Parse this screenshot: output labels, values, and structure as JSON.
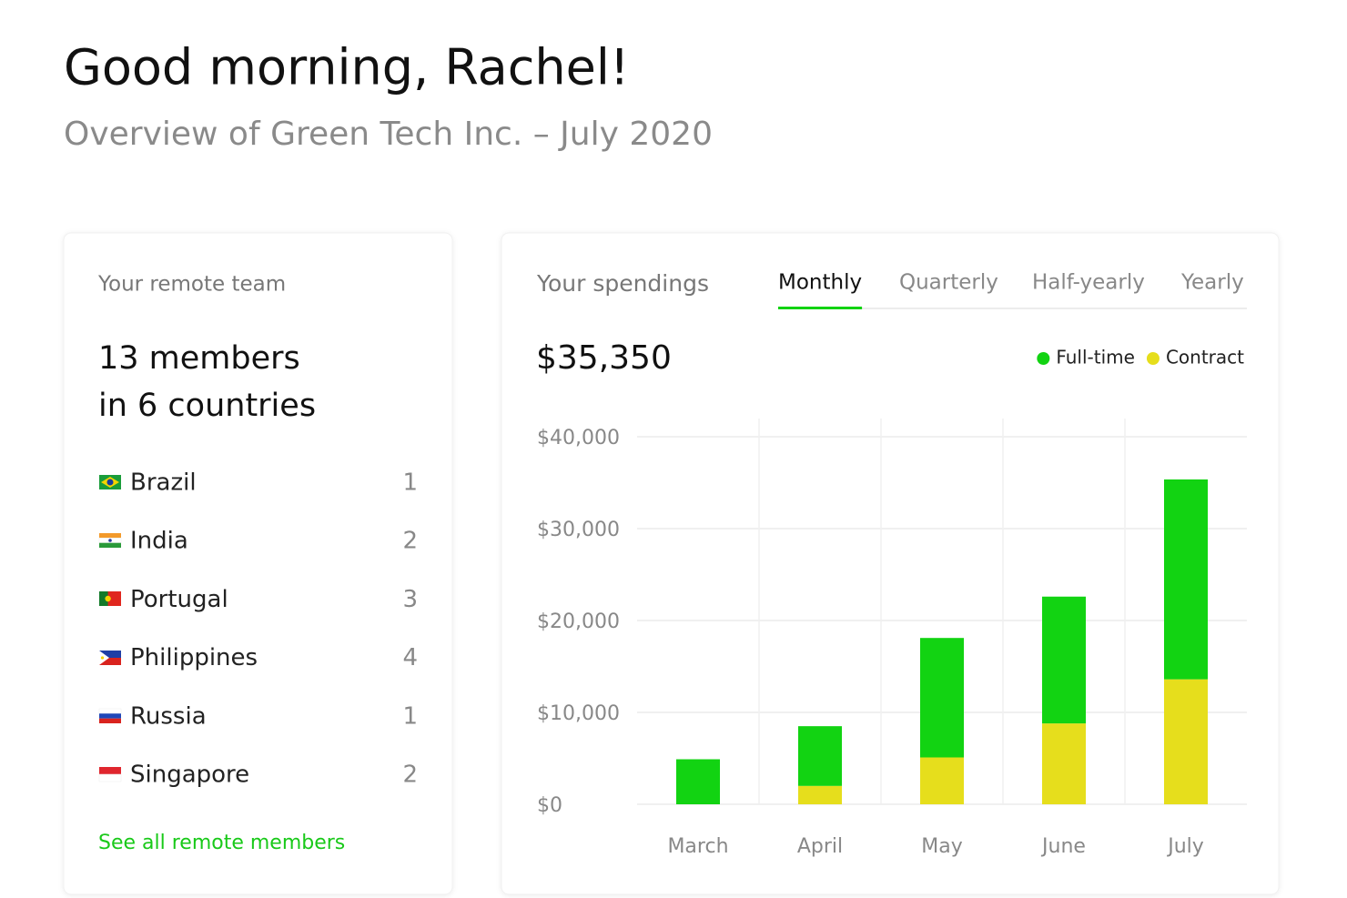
{
  "header": {
    "title": "Good morning, Rachel!",
    "subtitle": "Overview of Green Tech Inc. – July 2020"
  },
  "team": {
    "title": "Your remote team",
    "headline": [
      "13 members",
      "in 6 countries"
    ],
    "countries": [
      {
        "name": "Brazil",
        "count": 1
      },
      {
        "name": "India",
        "count": 2
      },
      {
        "name": "Portugal",
        "count": 3
      },
      {
        "name": "Philippines",
        "count": 4
      },
      {
        "name": "Russia",
        "count": 1
      },
      {
        "name": "Singapore",
        "count": 2
      }
    ],
    "link": "See all remote members"
  },
  "chart_data": {
    "type": "bar",
    "stacked": true,
    "title": "Your spendings",
    "tabs": [
      "Monthly",
      "Quarterly",
      "Half-yearly",
      "Yearly"
    ],
    "active_tab": 0,
    "total": {
      "value": 35350,
      "label": "$35,350"
    },
    "categories": [
      "March",
      "April",
      "May",
      "June",
      "July"
    ],
    "series": [
      {
        "name": "Full-time",
        "color": "#12d312",
        "values": [
          4900,
          6500,
          13000,
          13800,
          21750
        ]
      },
      {
        "name": "Contract",
        "color": "#e6de1c",
        "values": [
          0,
          2000,
          5100,
          8800,
          13600
        ]
      }
    ],
    "ylim": [
      0,
      40000
    ],
    "yticks": [
      {
        "value": 0,
        "label": "$0"
      },
      {
        "value": 10000,
        "label": "$10,000"
      },
      {
        "value": 20000,
        "label": "$20,000"
      },
      {
        "value": 30000,
        "label": "$30,000"
      },
      {
        "value": 40000,
        "label": "$40,000"
      }
    ],
    "grid": true
  }
}
